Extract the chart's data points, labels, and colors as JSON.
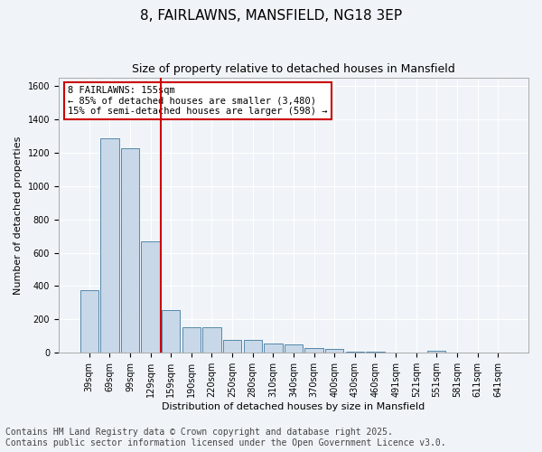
{
  "title": "8, FAIRLAWNS, MANSFIELD, NG18 3EP",
  "subtitle": "Size of property relative to detached houses in Mansfield",
  "xlabel": "Distribution of detached houses by size in Mansfield",
  "ylabel": "Number of detached properties",
  "categories": [
    "39sqm",
    "69sqm",
    "99sqm",
    "129sqm",
    "159sqm",
    "190sqm",
    "220sqm",
    "250sqm",
    "280sqm",
    "310sqm",
    "340sqm",
    "370sqm",
    "400sqm",
    "430sqm",
    "460sqm",
    "491sqm",
    "521sqm",
    "551sqm",
    "581sqm",
    "611sqm",
    "641sqm"
  ],
  "values": [
    375,
    1285,
    1225,
    670,
    255,
    155,
    155,
    80,
    80,
    55,
    50,
    30,
    25,
    10,
    5,
    0,
    0,
    15,
    0,
    0,
    0
  ],
  "bar_color": "#c8d8e8",
  "bar_edge_color": "#5588aa",
  "vline_x": 3.5,
  "vline_color": "#cc0000",
  "annotation_lines": [
    "8 FAIRLAWNS: 155sqm",
    "← 85% of detached houses are smaller (3,480)",
    "15% of semi-detached houses are larger (598) →"
  ],
  "annotation_box_color": "#cc0000",
  "ylim": [
    0,
    1650
  ],
  "yticks": [
    0,
    200,
    400,
    600,
    800,
    1000,
    1200,
    1400,
    1600
  ],
  "footer": "Contains HM Land Registry data © Crown copyright and database right 2025.\nContains public sector information licensed under the Open Government Licence v3.0.",
  "bg_color": "#f0f4f8",
  "plot_bg_color": "#f0f4f8",
  "title_fontsize": 11,
  "subtitle_fontsize": 9,
  "axis_label_fontsize": 8,
  "tick_fontsize": 7,
  "footer_fontsize": 7
}
